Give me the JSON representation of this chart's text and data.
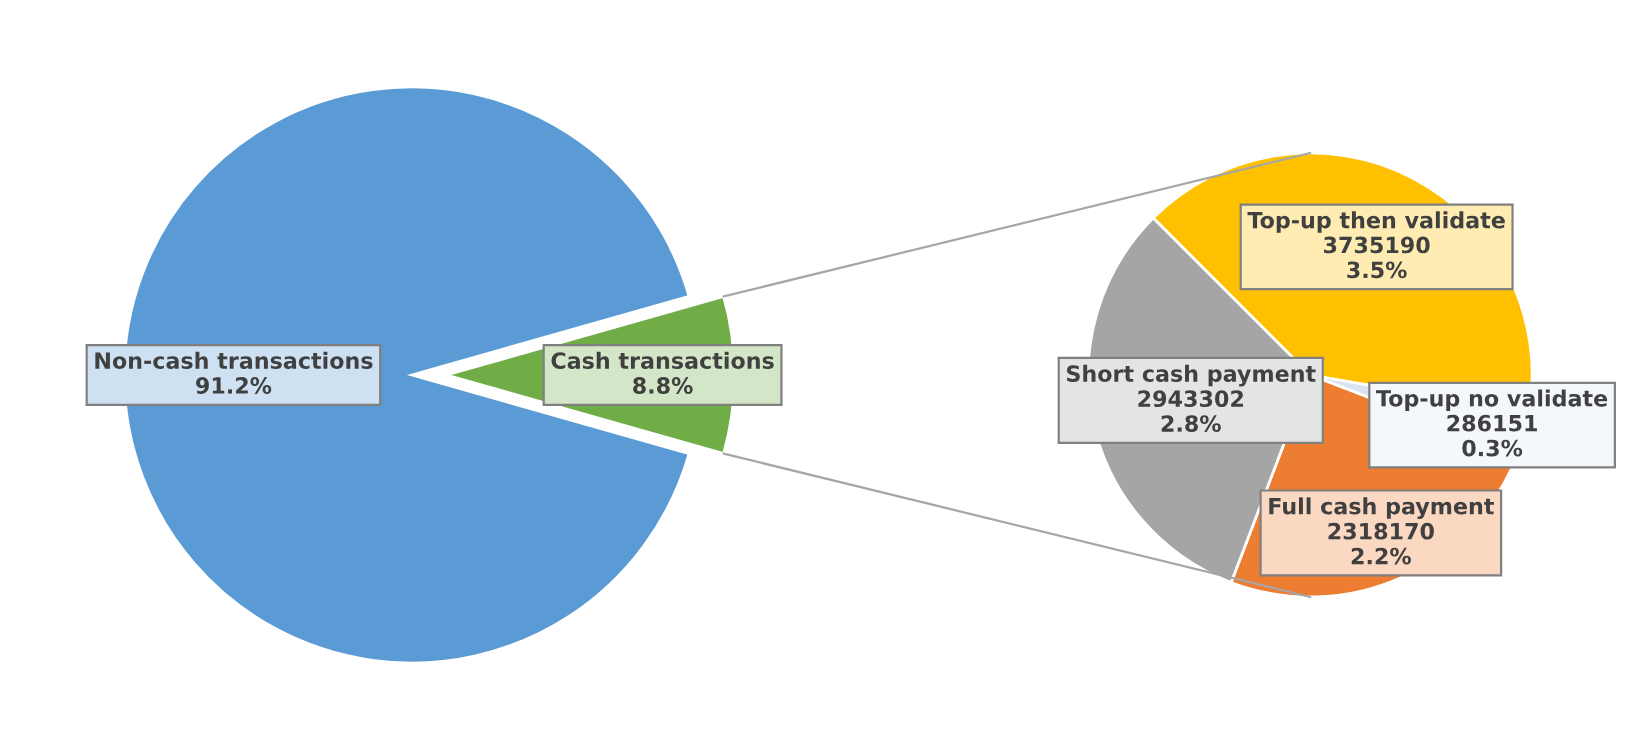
{
  "chart_data": [
    {
      "type": "pie",
      "categories": [
        "Non-cash transactions",
        "Cash transactions"
      ],
      "values": [
        91.2,
        8.8
      ],
      "colors": [
        "#5b9bd5",
        "#70ad47"
      ],
      "value_labels": [
        "91.2%",
        "8.8%"
      ]
    },
    {
      "type": "pie",
      "categories": [
        "Top-up then validate",
        "Top-up no validate",
        "Full cash payment",
        "Short cash payment"
      ],
      "values": [
        3735190,
        286151,
        2318170,
        2943302
      ],
      "colors": [
        "#ffc000",
        "#dae3f3",
        "#ed7d31",
        "#a5a5a5"
      ],
      "value_labels": [
        "3735190\n3.5%",
        "286151\n0.3%",
        "2318170\n2.2%",
        "2943302\n2.8%"
      ]
    }
  ]
}
